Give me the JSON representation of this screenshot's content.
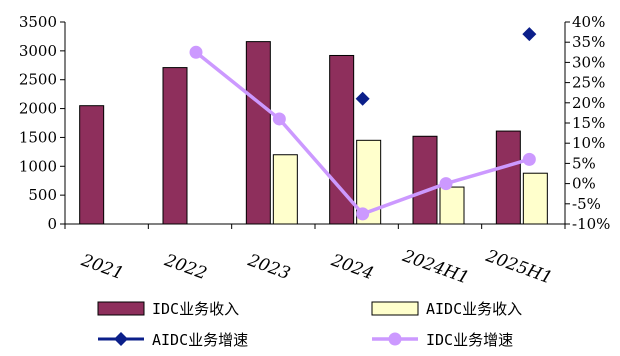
{
  "chart_data": {
    "type": "bar",
    "categories": [
      "2021",
      "2022",
      "2023",
      "2024",
      "2024H1",
      "2025H1"
    ],
    "y_left": {
      "ticks": [
        "0",
        "500",
        "1000",
        "1500",
        "2000",
        "2500",
        "3000",
        "3500"
      ],
      "ylim": [
        0,
        3500
      ]
    },
    "y_right": {
      "ticks": [
        "-10%",
        "-5%",
        "0%",
        "5%",
        "10%",
        "15%",
        "20%",
        "25%",
        "30%",
        "35%",
        "40%"
      ],
      "ylim": [
        -10,
        40
      ]
    },
    "grid": false,
    "legend_position": "bottom",
    "series": [
      {
        "name": "IDC业务收入",
        "kind": "bar",
        "axis": "left",
        "color": "#8e2f5c",
        "values": [
          2050,
          2710,
          3160,
          2920,
          1520,
          1610
        ]
      },
      {
        "name": "AIDC业务收入",
        "kind": "bar",
        "axis": "left",
        "color": "#ffffcc",
        "values": [
          null,
          null,
          1200,
          1450,
          640,
          880
        ]
      },
      {
        "name": "AIDC业务增速",
        "kind": "scatter",
        "axis": "right",
        "color": "#0b1f8a",
        "values": [
          null,
          null,
          null,
          21,
          null,
          37
        ]
      },
      {
        "name": "IDC业务增速",
        "kind": "line",
        "axis": "right",
        "color": "#cc99ff",
        "values": [
          null,
          32.5,
          16,
          -7.5,
          0,
          6
        ]
      }
    ]
  }
}
